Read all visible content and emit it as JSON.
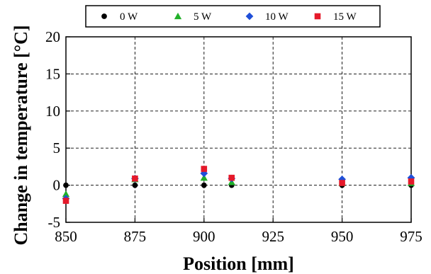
{
  "chart_data": {
    "type": "scatter",
    "title": "",
    "xlabel": "Position [mm]",
    "ylabel": "Change in temperature [°C]",
    "xlim": [
      850,
      975
    ],
    "ylim": [
      -5,
      20
    ],
    "xticks": [
      850,
      875,
      900,
      925,
      950,
      975
    ],
    "yticks": [
      -5,
      0,
      5,
      10,
      15,
      20
    ],
    "grid": true,
    "legend_position": "top",
    "series": [
      {
        "name": "0 W",
        "marker": "circle",
        "color": "#000000",
        "x": [
          850,
          875,
          900,
          910,
          950,
          975
        ],
        "y": [
          0,
          0,
          0,
          0,
          0,
          0
        ]
      },
      {
        "name": "5 W",
        "marker": "triangle",
        "color": "#22b02a",
        "x": [
          850,
          875,
          900,
          910,
          950,
          975
        ],
        "y": [
          -1.2,
          0.8,
          1.0,
          0.4,
          0.3,
          0.3
        ]
      },
      {
        "name": "10 W",
        "marker": "diamond",
        "color": "#1f4fd8",
        "x": [
          850,
          875,
          900,
          910,
          950,
          975
        ],
        "y": [
          -1.8,
          0.9,
          1.6,
          0.9,
          0.8,
          1.0
        ]
      },
      {
        "name": "15 W",
        "marker": "square",
        "color": "#e5192a",
        "x": [
          850,
          875,
          900,
          910,
          950,
          975
        ],
        "y": [
          -2.1,
          0.9,
          2.2,
          1.0,
          0.3,
          0.5
        ]
      }
    ]
  }
}
